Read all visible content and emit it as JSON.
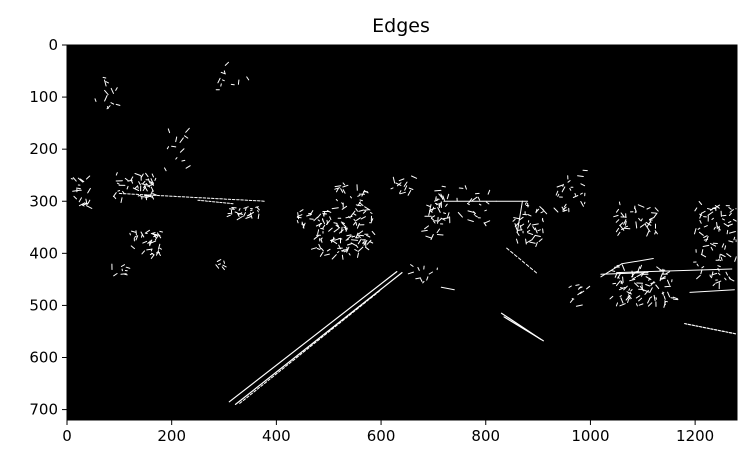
{
  "figure": {
    "title": "Edges",
    "x_ticks": [
      "0",
      "200",
      "400",
      "600",
      "800",
      "1000",
      "1200"
    ],
    "y_ticks": [
      "0",
      "100",
      "200",
      "300",
      "400",
      "500",
      "600",
      "700"
    ],
    "image_extent": {
      "width": 1280,
      "height": 720
    },
    "background_color": "#000000",
    "edge_color": "#ffffff"
  }
}
